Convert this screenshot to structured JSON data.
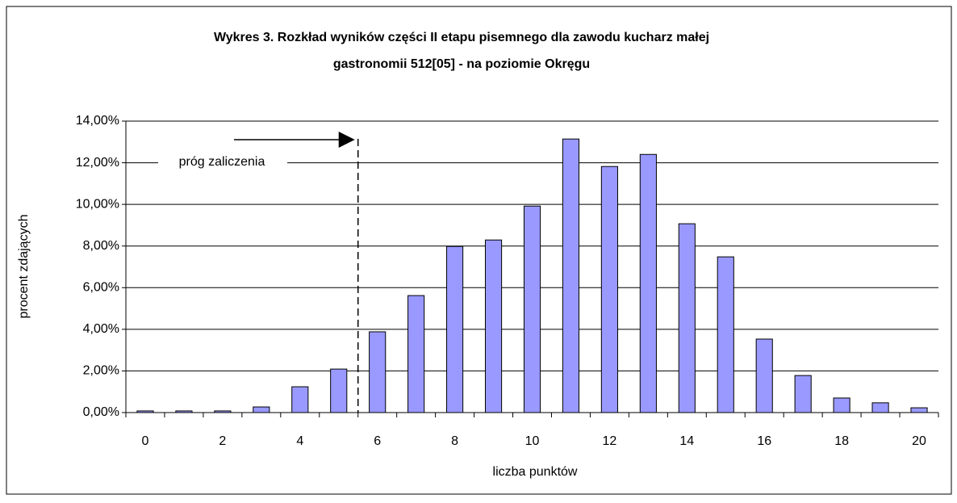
{
  "chart_data": {
    "type": "bar",
    "title": [
      "Wykres 3. Rozkład wyników części II etapu pisemnego dla zawodu kucharz małej",
      "gastronomii 512[05] - na poziomie Okręgu"
    ],
    "xlabel": "liczba punktów",
    "ylabel": "procent zdających",
    "annotation": "próg zaliczenia",
    "categories": [
      "0",
      null,
      "2",
      null,
      "4",
      null,
      "6",
      null,
      "8",
      null,
      "10",
      null,
      "12",
      null,
      "14",
      null,
      "16",
      null,
      "18",
      null,
      "20"
    ],
    "values": [
      0.08,
      0.08,
      0.08,
      0.27,
      1.24,
      2.09,
      3.88,
      5.62,
      7.98,
      8.29,
      9.92,
      13.14,
      11.82,
      12.4,
      9.07,
      7.48,
      3.53,
      1.78,
      0.7,
      0.47,
      0.23
    ],
    "color": "#9999ff",
    "ylim": [
      0,
      14
    ],
    "yticks": [
      {
        "value": 0,
        "label": "0,00%"
      },
      {
        "value": 2,
        "label": "2,00%"
      },
      {
        "value": 4,
        "label": "4,00%"
      },
      {
        "value": 6,
        "label": "6,00%"
      },
      {
        "value": 8,
        "label": "8,00%"
      },
      {
        "value": 10,
        "label": "10,00%"
      },
      {
        "value": 12,
        "label": "12,00%"
      },
      {
        "value": 14,
        "label": "14,00%"
      }
    ],
    "grid": true
  }
}
